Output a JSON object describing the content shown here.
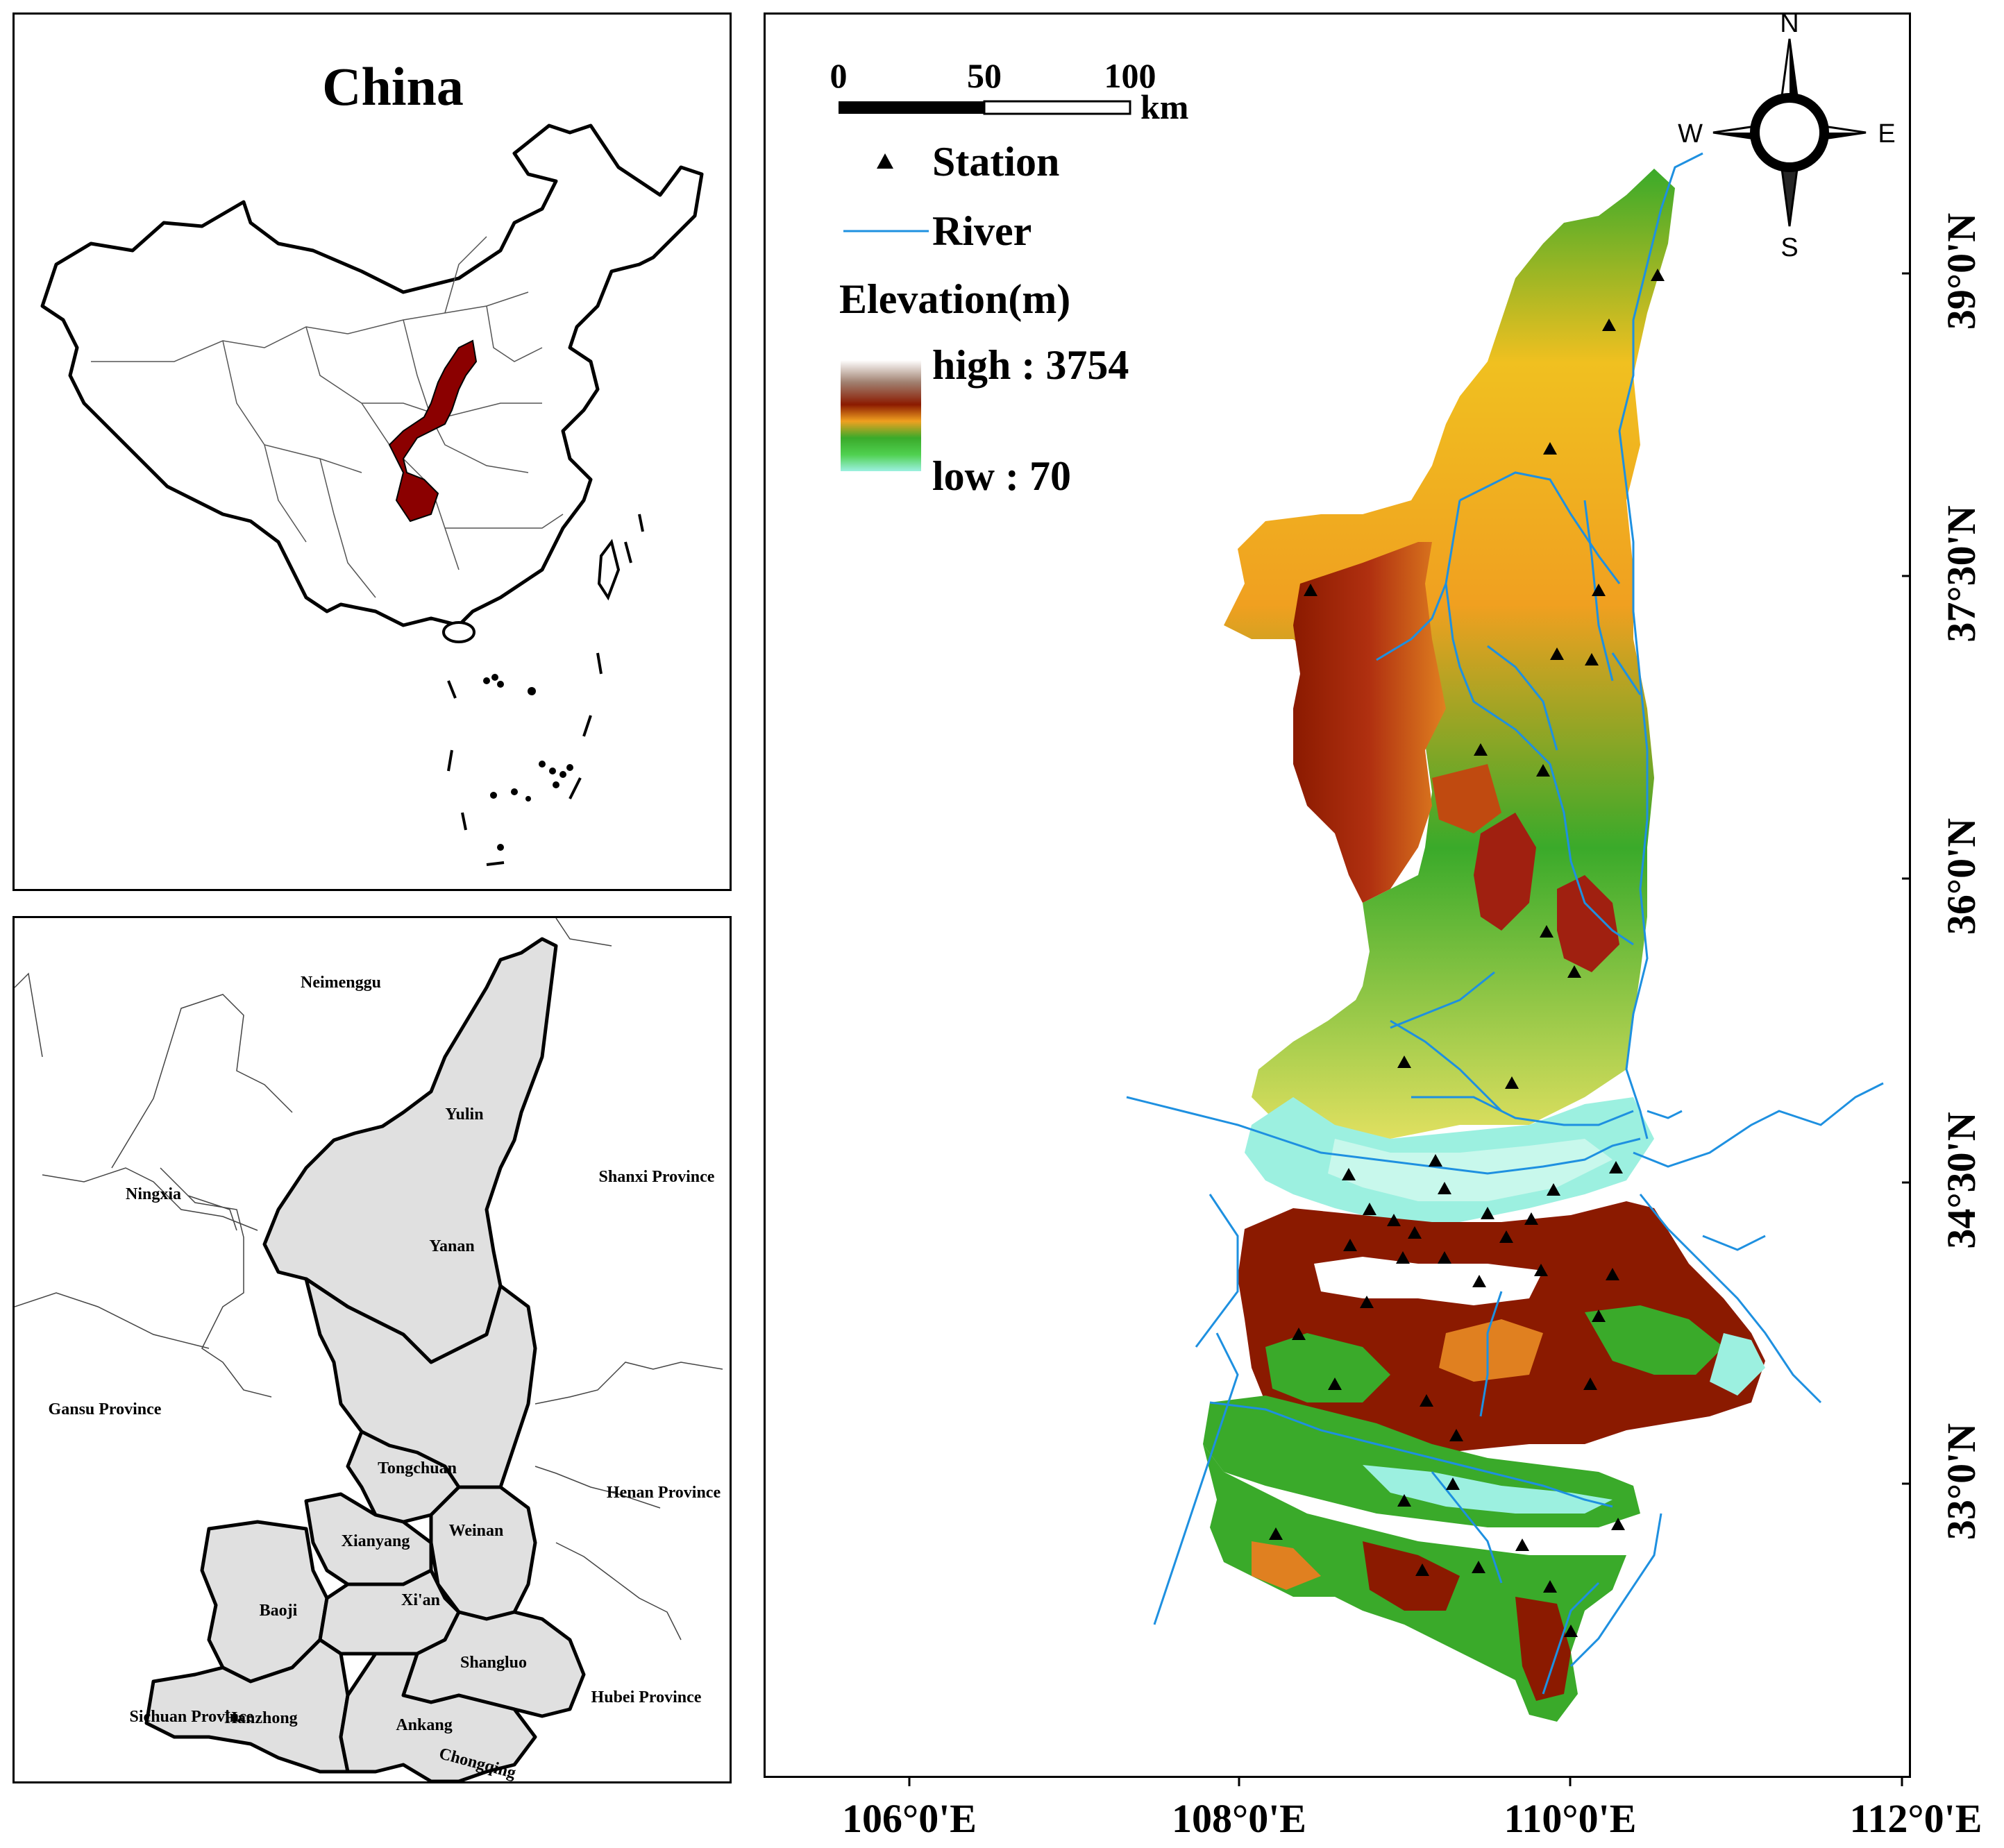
{
  "china_inset": {
    "title": "China"
  },
  "province_inset": {
    "cities": [
      {
        "name": "Yulin"
      },
      {
        "name": "Yanan"
      },
      {
        "name": "Tongchuan"
      },
      {
        "name": "Weinan"
      },
      {
        "name": "Xianyang"
      },
      {
        "name": "Baoji"
      },
      {
        "name": "Xi'an"
      },
      {
        "name": "Shangluo"
      },
      {
        "name": "Hanzhong"
      },
      {
        "name": "Ankang"
      }
    ],
    "neighbors": [
      {
        "name": "Neimenggu"
      },
      {
        "name": "Ningxia"
      },
      {
        "name": "Shanxi Province"
      },
      {
        "name": "Gansu Province"
      },
      {
        "name": "Henan Province"
      },
      {
        "name": "Sichuan Province"
      },
      {
        "name": "Hubei Province"
      },
      {
        "name": "Chongqing"
      }
    ],
    "fill_color": "#e0e0e0"
  },
  "main_map": {
    "scale_bar": {
      "ticks": [
        "0",
        "50",
        "100"
      ],
      "unit": "km"
    },
    "north_arrow": {
      "n": "N",
      "s": "S",
      "e": "E",
      "w": "W"
    },
    "legend": {
      "station": "Station",
      "river": "River",
      "elevation_title": "Elevation(m)",
      "high": "high : 3754",
      "low": "low : 70"
    },
    "lon_ticks": [
      "106°0'E",
      "108°0'E",
      "110°0'E",
      "112°0'E"
    ],
    "lat_ticks": [
      "39°0'N",
      "37°30'N",
      "36°0'N",
      "34°30'N",
      "33°0'N"
    ],
    "colors": {
      "river": "#1e90e0",
      "highlight_province": "#8b0000",
      "elev_low": "#9cf0e0",
      "elev_mid": "#3aaa2a",
      "elev_orange": "#f0a020",
      "elev_high": "#8b1a00",
      "elev_peak": "#ffffff"
    }
  }
}
